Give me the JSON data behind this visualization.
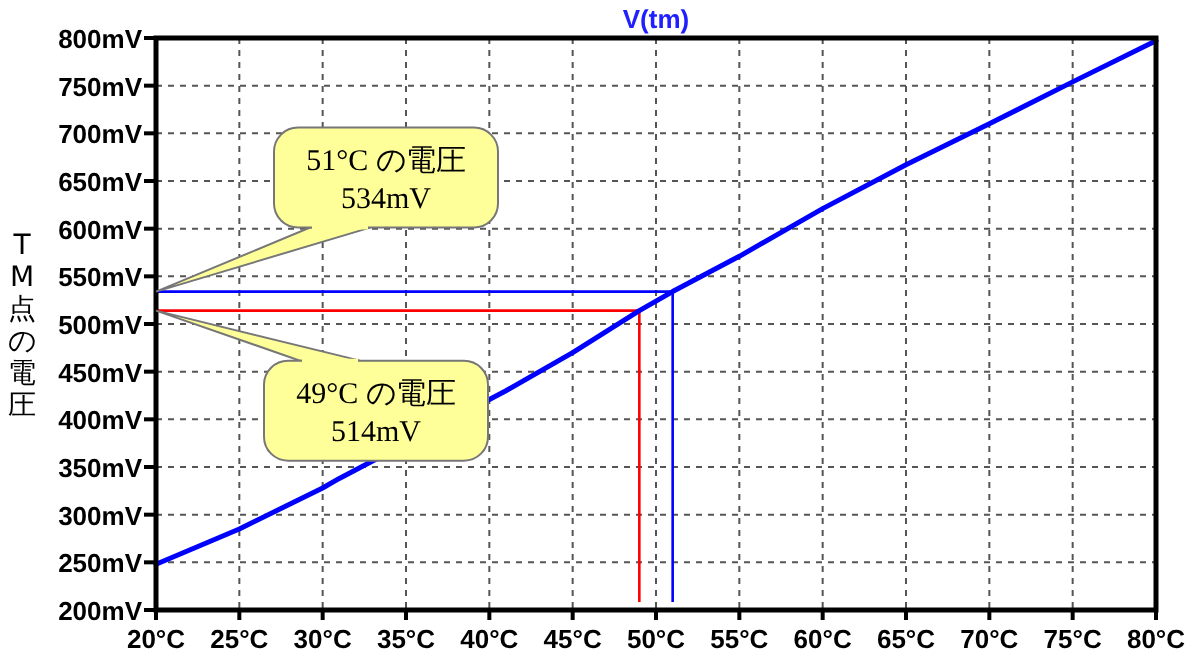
{
  "chart_data": {
    "type": "line",
    "title": "V(tm)",
    "ylabel": "TM点の電圧",
    "x": [
      20,
      25,
      30,
      31,
      41,
      45,
      49,
      50,
      51,
      55,
      60,
      65,
      70,
      75,
      80
    ],
    "series": [
      {
        "color": "#0000ff",
        "values": [
          248,
          285,
          328,
          338,
          430,
          470,
          514,
          524,
          534,
          571,
          621,
          667,
          710,
          754,
          797
        ]
      }
    ],
    "xlim": [
      20,
      80
    ],
    "ylim": [
      200,
      800
    ],
    "xticks": [
      {
        "value": 20,
        "label": "20°C"
      },
      {
        "value": 25,
        "label": "25°C"
      },
      {
        "value": 30,
        "label": "30°C"
      },
      {
        "value": 35,
        "label": "35°C"
      },
      {
        "value": 40,
        "label": "40°C"
      },
      {
        "value": 45,
        "label": "45°C"
      },
      {
        "value": 50,
        "label": "50°C"
      },
      {
        "value": 55,
        "label": "55°C"
      },
      {
        "value": 60,
        "label": "60°C"
      },
      {
        "value": 65,
        "label": "65°C"
      },
      {
        "value": 70,
        "label": "70°C"
      },
      {
        "value": 75,
        "label": "75°C"
      },
      {
        "value": 80,
        "label": "80°C"
      }
    ],
    "yticks": [
      {
        "value": 200,
        "label": "200mV"
      },
      {
        "value": 250,
        "label": "250mV"
      },
      {
        "value": 300,
        "label": "300mV"
      },
      {
        "value": 350,
        "label": "350mV"
      },
      {
        "value": 400,
        "label": "400mV"
      },
      {
        "value": 450,
        "label": "450mV"
      },
      {
        "value": 500,
        "label": "500mV"
      },
      {
        "value": 550,
        "label": "550mV"
      },
      {
        "value": 600,
        "label": "600mV"
      },
      {
        "value": 650,
        "label": "650mV"
      },
      {
        "value": 700,
        "label": "700mV"
      },
      {
        "value": 750,
        "label": "750mV"
      },
      {
        "value": 800,
        "label": "800mV"
      }
    ],
    "grid": true,
    "line_style": "solid",
    "marker": "none",
    "ref_lines": [
      {
        "axis": "y",
        "value": 534,
        "color": "#0000ff"
      },
      {
        "axis": "x",
        "value": 51,
        "color": "#0000ff"
      },
      {
        "axis": "y",
        "value": 514,
        "color": "#ff0000"
      },
      {
        "axis": "x",
        "value": 49,
        "color": "#ff0000"
      }
    ],
    "annotations": [
      "51°C の電圧\n534mV",
      "49°C の電圧\n514mV"
    ]
  }
}
